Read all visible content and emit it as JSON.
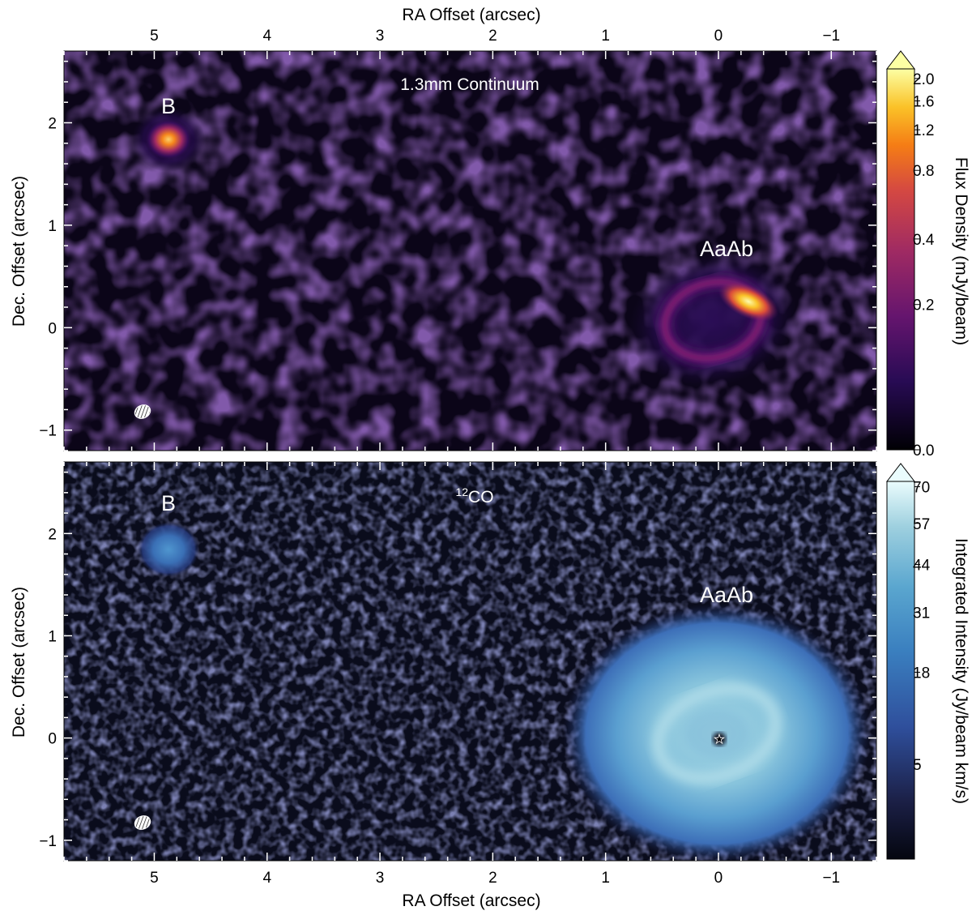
{
  "figure": {
    "top_axis_label": "RA Offset (arcsec)",
    "bottom_axis_label": "RA Offset (arcsec)",
    "y_axis_label": "Dec. Offset (arcsec)",
    "ra_tick_labels": [
      "5",
      "4",
      "3",
      "2",
      "1",
      "0",
      "−1"
    ],
    "ra_tick_values": [
      5,
      4,
      3,
      2,
      1,
      0,
      -1
    ],
    "dec_tick_labels": [
      "2",
      "1",
      "0",
      "−1"
    ],
    "dec_tick_values": [
      2,
      1,
      0,
      -1
    ],
    "ra_range": [
      5.8,
      -1.4
    ],
    "dec_range": [
      -1.2,
      2.7
    ]
  },
  "panels": [
    {
      "title": "1.3mm Continuum",
      "source_labels": {
        "b": "B",
        "aaab": "AaAb"
      },
      "colorbar": {
        "label": "Flux Density (mJy/beam)",
        "tick_labels": [
          "2.0",
          "1.6",
          "1.2",
          "0.8",
          "0.4",
          "0.2",
          "0.0"
        ],
        "tick_values": [
          2.0,
          1.6,
          1.2,
          0.8,
          0.4,
          0.2,
          0.0
        ],
        "colormap": "inferno",
        "colors": [
          "#000004",
          "#280b54",
          "#65156e",
          "#9f2a63",
          "#d44842",
          "#f52d14",
          "#fac228",
          "#fcffa4"
        ]
      }
    },
    {
      "title_sup": "12",
      "title": "CO",
      "source_labels": {
        "b": "B",
        "aaab": "AaAb"
      },
      "colorbar": {
        "label": "Integrated Intensity (Jy/beam km/s)",
        "tick_labels": [
          "70",
          "57",
          "44",
          "31",
          "18",
          "5"
        ],
        "tick_values": [
          70,
          57,
          44,
          31,
          18,
          5
        ],
        "colormap": "ice",
        "colors": [
          "#04060f",
          "#1b1f45",
          "#2f4f9c",
          "#3a7fbf",
          "#5aa6cf",
          "#9ed0df",
          "#eafcfd"
        ]
      }
    }
  ]
}
